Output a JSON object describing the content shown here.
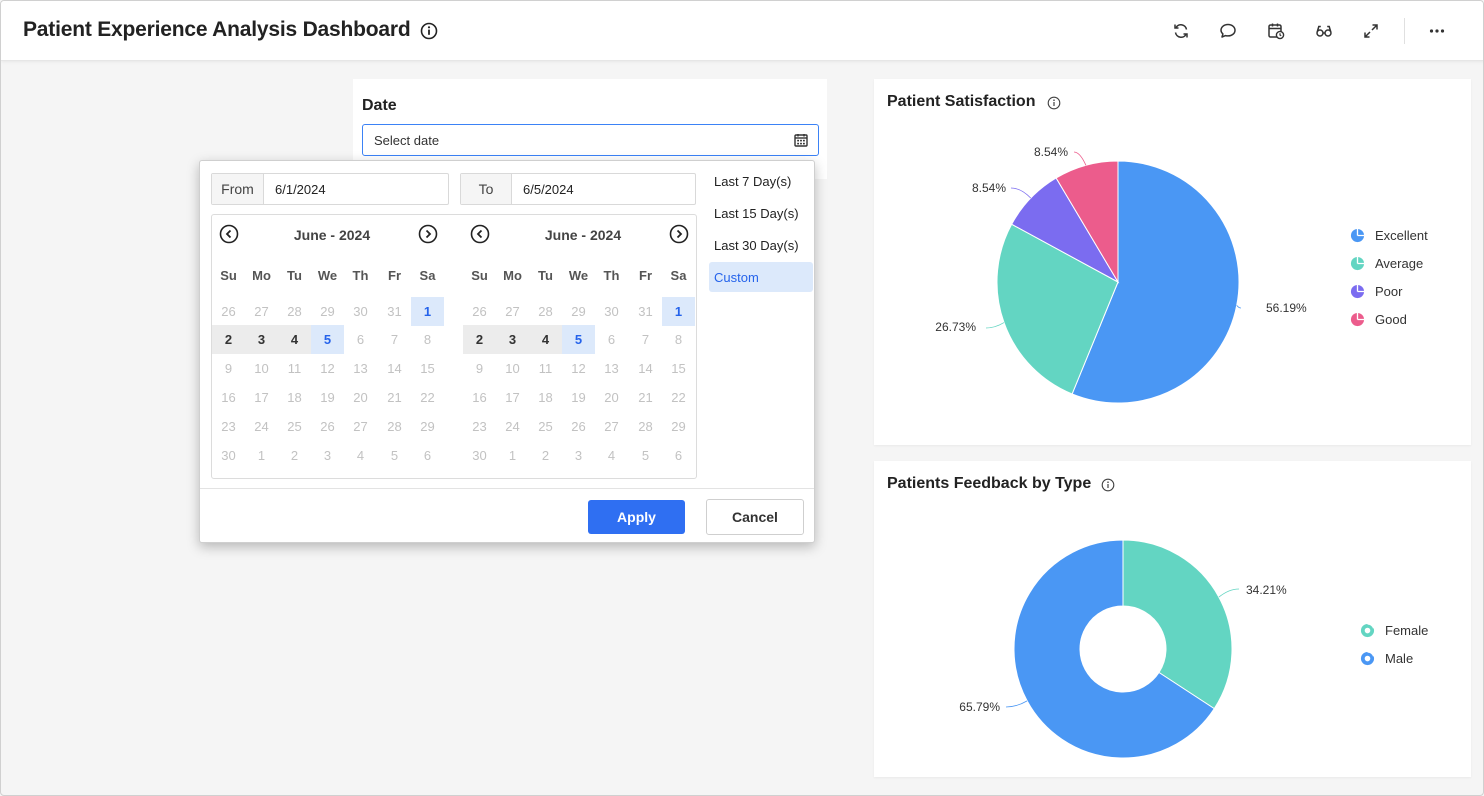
{
  "header": {
    "title": "Patient Experience Analysis Dashboard",
    "icons": [
      "refresh-icon",
      "comment-icon",
      "schedule-icon",
      "view-icon",
      "fullscreen-icon",
      "more-icon"
    ]
  },
  "date_filter": {
    "label": "Date",
    "placeholder": "Select date",
    "from_label": "From",
    "from_value": "6/1/2024",
    "to_label": "To",
    "to_value": "6/5/2024",
    "calendars": [
      {
        "title": "June - 2024"
      },
      {
        "title": "June - 2024"
      }
    ],
    "weekdays": [
      "Su",
      "Mo",
      "Tu",
      "We",
      "Th",
      "Fr",
      "Sa"
    ],
    "weeks": [
      [
        "26",
        "27",
        "28",
        "29",
        "30",
        "31",
        "1"
      ],
      [
        "2",
        "3",
        "4",
        "5",
        "6",
        "7",
        "8"
      ],
      [
        "9",
        "10",
        "11",
        "12",
        "13",
        "14",
        "15"
      ],
      [
        "16",
        "17",
        "18",
        "19",
        "20",
        "21",
        "22"
      ],
      [
        "23",
        "24",
        "25",
        "26",
        "27",
        "28",
        "29"
      ],
      [
        "30",
        "1",
        "2",
        "3",
        "4",
        "5",
        "6"
      ]
    ],
    "selected_start": "1",
    "selected_end": "5",
    "presets": [
      "Last 7 Day(s)",
      "Last 15 Day(s)",
      "Last 30 Day(s)",
      "Custom"
    ],
    "active_preset": "Custom",
    "apply_label": "Apply",
    "cancel_label": "Cancel"
  },
  "colors": {
    "accent": "#2f6ff2",
    "excellent": "#4a97f4",
    "average": "#63d5c2",
    "poor": "#7b6cf0",
    "good": "#ec5c8c"
  },
  "chart_data": [
    {
      "type": "pie",
      "title": "Patient Satisfaction",
      "categories": [
        "Excellent",
        "Average",
        "Poor",
        "Good"
      ],
      "values": [
        56.19,
        26.73,
        8.54,
        8.54
      ],
      "labels": [
        "56.19%",
        "26.73%",
        "8.54%",
        "8.54%"
      ],
      "colors": [
        "#4a97f4",
        "#63d5c2",
        "#7b6cf0",
        "#ec5c8c"
      ],
      "legend": "right"
    },
    {
      "type": "donut",
      "title": "Patients Feedback by Type",
      "categories": [
        "Female",
        "Male"
      ],
      "values": [
        34.21,
        65.79
      ],
      "labels": [
        "34.21%",
        "65.79%"
      ],
      "colors": [
        "#63d5c2",
        "#4a97f4"
      ],
      "legend": "right"
    }
  ]
}
